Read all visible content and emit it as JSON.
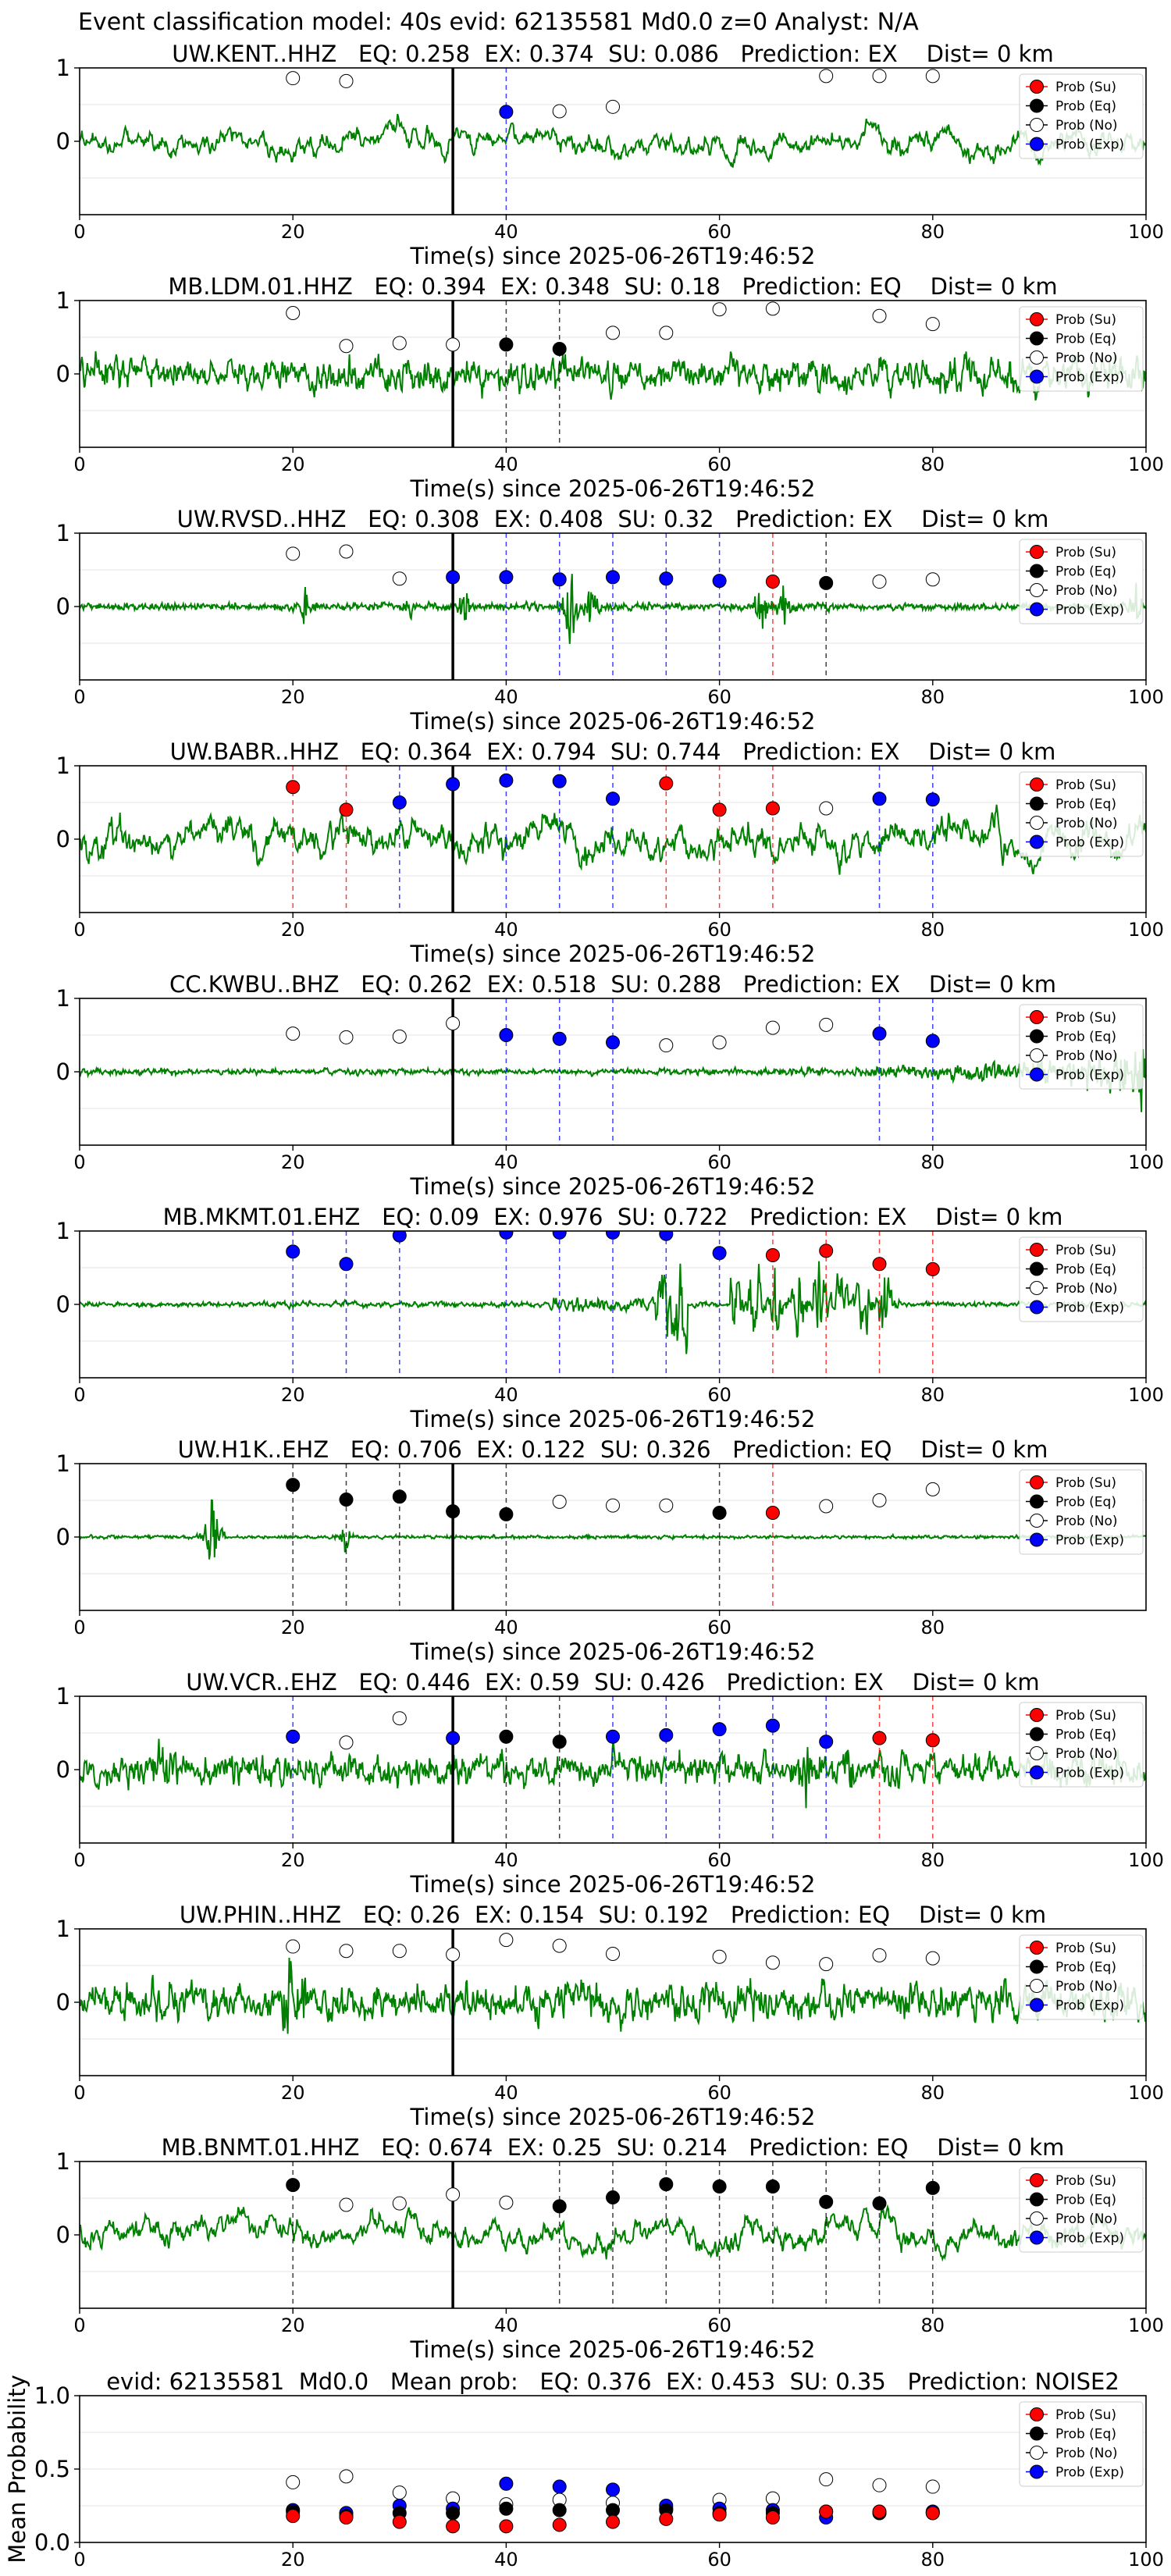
{
  "figure_title": "Event classification model: 40s evid: 62135581 Md0.0 z=0 Analyst: N/A",
  "legend_entries": [
    "Prob (Su)",
    "Prob (Eq)",
    "Prob (No)",
    "Prob (Exp)"
  ],
  "colors": {
    "su": "#ff0000",
    "eq": "#000000",
    "no": "#ffffff",
    "exp": "#0000ff",
    "waveform": "#008000",
    "marker_edge": "#000000",
    "origin_line": "#000000",
    "grid": "#e6e6e6"
  },
  "chart_data": [
    {
      "type": "line",
      "title": "UW.KENT..HHZ   EQ: 0.258  EX: 0.374  SU: 0.086   Prediction: EX    Dist= 0 km",
      "xlabel": "Time(s) since 2025-06-26T19:46:52",
      "ylabel": "",
      "xlim": [
        0,
        100
      ],
      "ylim": [
        -1,
        1
      ],
      "xticks": [
        0,
        20,
        40,
        60,
        80,
        100
      ],
      "yticks": [
        0,
        1
      ],
      "origin_time": 35,
      "waveform": {
        "style": "smooth",
        "amplitude": 0.32,
        "seed": 11
      },
      "points": [
        {
          "t": 20,
          "p": 0.86,
          "cls": "no"
        },
        {
          "t": 25,
          "p": 0.82,
          "cls": "no"
        },
        {
          "t": 40,
          "p": 0.4,
          "cls": "exp"
        },
        {
          "t": 45,
          "p": 0.41,
          "cls": "no"
        },
        {
          "t": 50,
          "p": 0.47,
          "cls": "no"
        },
        {
          "t": 70,
          "p": 0.89,
          "cls": "no"
        },
        {
          "t": 75,
          "p": 0.89,
          "cls": "no"
        },
        {
          "t": 80,
          "p": 0.89,
          "cls": "no"
        }
      ]
    },
    {
      "type": "line",
      "title": "MB.LDM.01.HHZ   EQ: 0.394  EX: 0.348  SU: 0.18   Prediction: EQ    Dist= 0 km",
      "xlabel": "Time(s) since 2025-06-26T19:46:52",
      "ylabel": "",
      "xlim": [
        0,
        100
      ],
      "ylim": [
        -1,
        1
      ],
      "xticks": [
        0,
        20,
        40,
        60,
        80,
        100
      ],
      "yticks": [
        0,
        1
      ],
      "origin_time": 35,
      "waveform": {
        "style": "dense",
        "amplitude": 0.32,
        "seed": 23
      },
      "points": [
        {
          "t": 20,
          "p": 0.83,
          "cls": "no"
        },
        {
          "t": 25,
          "p": 0.38,
          "cls": "no"
        },
        {
          "t": 30,
          "p": 0.42,
          "cls": "no"
        },
        {
          "t": 35,
          "p": 0.4,
          "cls": "no"
        },
        {
          "t": 40,
          "p": 0.4,
          "cls": "eq"
        },
        {
          "t": 45,
          "p": 0.34,
          "cls": "eq"
        },
        {
          "t": 50,
          "p": 0.56,
          "cls": "no"
        },
        {
          "t": 55,
          "p": 0.56,
          "cls": "no"
        },
        {
          "t": 60,
          "p": 0.88,
          "cls": "no"
        },
        {
          "t": 65,
          "p": 0.89,
          "cls": "no"
        },
        {
          "t": 75,
          "p": 0.79,
          "cls": "no"
        },
        {
          "t": 80,
          "p": 0.68,
          "cls": "no"
        }
      ]
    },
    {
      "type": "line",
      "title": "UW.RVSD..HHZ   EQ: 0.308  EX: 0.408  SU: 0.32   Prediction: EX    Dist= 0 km",
      "xlabel": "Time(s) since 2025-06-26T19:46:52",
      "ylabel": "",
      "xlim": [
        0,
        100
      ],
      "ylim": [
        -1,
        1
      ],
      "xticks": [
        0,
        20,
        40,
        60,
        80,
        100
      ],
      "yticks": [
        0,
        1
      ],
      "origin_time": 35,
      "waveform": {
        "style": "bursty",
        "amplitude": 0.09,
        "seed": 37,
        "bursts": [
          [
            21,
            0.35
          ],
          [
            31,
            0.25
          ],
          [
            36,
            0.45
          ],
          [
            46,
            0.95
          ],
          [
            48,
            0.5
          ],
          [
            64,
            0.55
          ],
          [
            66,
            0.45
          ],
          [
            99,
            0.4
          ]
        ]
      },
      "points": [
        {
          "t": 20,
          "p": 0.72,
          "cls": "no"
        },
        {
          "t": 25,
          "p": 0.75,
          "cls": "no"
        },
        {
          "t": 30,
          "p": 0.38,
          "cls": "no"
        },
        {
          "t": 35,
          "p": 0.4,
          "cls": "exp"
        },
        {
          "t": 40,
          "p": 0.4,
          "cls": "exp"
        },
        {
          "t": 45,
          "p": 0.37,
          "cls": "exp"
        },
        {
          "t": 50,
          "p": 0.4,
          "cls": "exp"
        },
        {
          "t": 55,
          "p": 0.38,
          "cls": "exp"
        },
        {
          "t": 60,
          "p": 0.35,
          "cls": "exp"
        },
        {
          "t": 65,
          "p": 0.34,
          "cls": "su"
        },
        {
          "t": 70,
          "p": 0.32,
          "cls": "eq"
        },
        {
          "t": 75,
          "p": 0.34,
          "cls": "no"
        },
        {
          "t": 80,
          "p": 0.37,
          "cls": "no"
        }
      ]
    },
    {
      "type": "line",
      "title": "UW.BABR..HHZ   EQ: 0.364  EX: 0.794  SU: 0.744   Prediction: EX    Dist= 0 km",
      "xlabel": "Time(s) since 2025-06-26T19:46:52",
      "ylabel": "",
      "xlim": [
        0,
        100
      ],
      "ylim": [
        -1,
        1
      ],
      "xticks": [
        0,
        20,
        40,
        60,
        80,
        100
      ],
      "yticks": [
        0,
        1
      ],
      "origin_time": 35,
      "waveform": {
        "style": "smooth",
        "amplitude": 0.5,
        "seed": 53
      },
      "points": [
        {
          "t": 20,
          "p": 0.71,
          "cls": "su"
        },
        {
          "t": 25,
          "p": 0.4,
          "cls": "su"
        },
        {
          "t": 30,
          "p": 0.5,
          "cls": "exp"
        },
        {
          "t": 35,
          "p": 0.75,
          "cls": "exp"
        },
        {
          "t": 40,
          "p": 0.8,
          "cls": "exp"
        },
        {
          "t": 45,
          "p": 0.79,
          "cls": "exp"
        },
        {
          "t": 50,
          "p": 0.55,
          "cls": "exp"
        },
        {
          "t": 55,
          "p": 0.76,
          "cls": "su"
        },
        {
          "t": 60,
          "p": 0.4,
          "cls": "su"
        },
        {
          "t": 65,
          "p": 0.42,
          "cls": "su"
        },
        {
          "t": 70,
          "p": 0.42,
          "cls": "no"
        },
        {
          "t": 75,
          "p": 0.55,
          "cls": "exp"
        },
        {
          "t": 80,
          "p": 0.54,
          "cls": "exp"
        }
      ]
    },
    {
      "type": "line",
      "title": "CC.KWBU..BHZ   EQ: 0.262  EX: 0.518  SU: 0.288   Prediction: EX    Dist= 0 km",
      "xlabel": "Time(s) since 2025-06-26T19:46:52",
      "ylabel": "",
      "xlim": [
        0,
        100
      ],
      "ylim": [
        -1,
        1
      ],
      "xticks": [
        0,
        20,
        40,
        60,
        80,
        100
      ],
      "yticks": [
        0,
        1
      ],
      "origin_time": 35,
      "waveform": {
        "style": "growing",
        "amplitude": 0.06,
        "seed": 71
      },
      "points": [
        {
          "t": 20,
          "p": 0.52,
          "cls": "no"
        },
        {
          "t": 25,
          "p": 0.47,
          "cls": "no"
        },
        {
          "t": 30,
          "p": 0.48,
          "cls": "no"
        },
        {
          "t": 35,
          "p": 0.66,
          "cls": "no"
        },
        {
          "t": 40,
          "p": 0.5,
          "cls": "exp"
        },
        {
          "t": 45,
          "p": 0.45,
          "cls": "exp"
        },
        {
          "t": 50,
          "p": 0.4,
          "cls": "exp"
        },
        {
          "t": 55,
          "p": 0.36,
          "cls": "no"
        },
        {
          "t": 60,
          "p": 0.4,
          "cls": "no"
        },
        {
          "t": 65,
          "p": 0.6,
          "cls": "no"
        },
        {
          "t": 70,
          "p": 0.64,
          "cls": "no"
        },
        {
          "t": 75,
          "p": 0.52,
          "cls": "exp"
        },
        {
          "t": 80,
          "p": 0.42,
          "cls": "exp"
        }
      ]
    },
    {
      "type": "line",
      "title": "MB.MKMT.01.EHZ   EQ: 0.09  EX: 0.976  SU: 0.722   Prediction: EX    Dist= 0 km",
      "xlabel": "Time(s) since 2025-06-26T19:46:52",
      "ylabel": "",
      "xlim": [
        0,
        100
      ],
      "ylim": [
        -1,
        1
      ],
      "xticks": [
        0,
        20,
        40,
        60,
        80,
        100
      ],
      "yticks": [
        0,
        1
      ],
      "origin_time": null,
      "waveform": {
        "style": "blasts",
        "amplitude": 0.05,
        "seed": 89
      },
      "points": [
        {
          "t": 20,
          "p": 0.72,
          "cls": "exp"
        },
        {
          "t": 25,
          "p": 0.55,
          "cls": "exp"
        },
        {
          "t": 30,
          "p": 0.94,
          "cls": "exp"
        },
        {
          "t": 40,
          "p": 0.98,
          "cls": "exp"
        },
        {
          "t": 45,
          "p": 0.98,
          "cls": "exp"
        },
        {
          "t": 50,
          "p": 0.98,
          "cls": "exp"
        },
        {
          "t": 55,
          "p": 0.96,
          "cls": "exp"
        },
        {
          "t": 60,
          "p": 0.7,
          "cls": "exp"
        },
        {
          "t": 65,
          "p": 0.67,
          "cls": "su"
        },
        {
          "t": 70,
          "p": 0.73,
          "cls": "su"
        },
        {
          "t": 75,
          "p": 0.55,
          "cls": "su"
        },
        {
          "t": 80,
          "p": 0.48,
          "cls": "su"
        }
      ]
    },
    {
      "type": "line",
      "title": "UW.H1K..EHZ   EQ: 0.706  EX: 0.122  SU: 0.326   Prediction: EQ    Dist= 0 km",
      "xlabel": "Time(s) since 2025-06-26T19:46:52",
      "ylabel": "",
      "xlim": [
        0,
        100
      ],
      "ylim": [
        -1,
        1
      ],
      "xticks": [
        0,
        20,
        40,
        60,
        80
      ],
      "yticks": [
        0,
        1
      ],
      "origin_time": 35,
      "waveform": {
        "style": "quiet",
        "amplitude": 0.04,
        "seed": 97,
        "bursts": [
          [
            12.3,
            0.98
          ],
          [
            25,
            0.35
          ]
        ]
      },
      "points": [
        {
          "t": 20,
          "p": 0.71,
          "cls": "eq"
        },
        {
          "t": 25,
          "p": 0.51,
          "cls": "eq"
        },
        {
          "t": 30,
          "p": 0.55,
          "cls": "eq"
        },
        {
          "t": 35,
          "p": 0.35,
          "cls": "eq"
        },
        {
          "t": 40,
          "p": 0.31,
          "cls": "eq"
        },
        {
          "t": 45,
          "p": 0.48,
          "cls": "no"
        },
        {
          "t": 50,
          "p": 0.43,
          "cls": "no"
        },
        {
          "t": 55,
          "p": 0.43,
          "cls": "no"
        },
        {
          "t": 60,
          "p": 0.33,
          "cls": "eq"
        },
        {
          "t": 65,
          "p": 0.33,
          "cls": "su"
        },
        {
          "t": 70,
          "p": 0.42,
          "cls": "no"
        },
        {
          "t": 75,
          "p": 0.5,
          "cls": "no"
        },
        {
          "t": 80,
          "p": 0.65,
          "cls": "no"
        }
      ]
    },
    {
      "type": "line",
      "title": "UW.VCR..EHZ   EQ: 0.446  EX: 0.59  SU: 0.426   Prediction: EX    Dist= 0 km",
      "xlabel": "Time(s) since 2025-06-26T19:46:52",
      "ylabel": "",
      "xlim": [
        0,
        100
      ],
      "ylim": [
        -1,
        1
      ],
      "xticks": [
        0,
        20,
        40,
        60,
        80,
        100
      ],
      "yticks": [
        0,
        1
      ],
      "origin_time": 35,
      "waveform": {
        "style": "dense",
        "amplitude": 0.3,
        "seed": 101,
        "bursts": [
          [
            7.5,
            0.8
          ],
          [
            68,
            0.6
          ],
          [
            72,
            0.6
          ]
        ]
      },
      "points": [
        {
          "t": 20,
          "p": 0.45,
          "cls": "exp"
        },
        {
          "t": 25,
          "p": 0.37,
          "cls": "no"
        },
        {
          "t": 30,
          "p": 0.7,
          "cls": "no"
        },
        {
          "t": 35,
          "p": 0.43,
          "cls": "exp"
        },
        {
          "t": 40,
          "p": 0.45,
          "cls": "eq"
        },
        {
          "t": 45,
          "p": 0.38,
          "cls": "eq"
        },
        {
          "t": 50,
          "p": 0.45,
          "cls": "exp"
        },
        {
          "t": 55,
          "p": 0.47,
          "cls": "exp"
        },
        {
          "t": 60,
          "p": 0.55,
          "cls": "exp"
        },
        {
          "t": 65,
          "p": 0.6,
          "cls": "exp"
        },
        {
          "t": 70,
          "p": 0.38,
          "cls": "exp"
        },
        {
          "t": 75,
          "p": 0.43,
          "cls": "su"
        },
        {
          "t": 80,
          "p": 0.4,
          "cls": "su"
        }
      ]
    },
    {
      "type": "line",
      "title": "UW.PHIN..HHZ   EQ: 0.26  EX: 0.154  SU: 0.192   Prediction: EQ    Dist= 0 km",
      "xlabel": "Time(s) since 2025-06-26T19:46:52",
      "ylabel": "",
      "xlim": [
        0,
        100
      ],
      "ylim": [
        -1,
        1
      ],
      "xticks": [
        0,
        20,
        40,
        60,
        80,
        100
      ],
      "yticks": [
        0,
        1
      ],
      "origin_time": 35,
      "waveform": {
        "style": "dense",
        "amplitude": 0.35,
        "seed": 131,
        "bursts": [
          [
            19.5,
            0.95
          ],
          [
            21,
            0.7
          ]
        ]
      },
      "points": [
        {
          "t": 20,
          "p": 0.76,
          "cls": "no"
        },
        {
          "t": 25,
          "p": 0.7,
          "cls": "no"
        },
        {
          "t": 30,
          "p": 0.7,
          "cls": "no"
        },
        {
          "t": 35,
          "p": 0.65,
          "cls": "no"
        },
        {
          "t": 40,
          "p": 0.85,
          "cls": "no"
        },
        {
          "t": 45,
          "p": 0.77,
          "cls": "no"
        },
        {
          "t": 50,
          "p": 0.66,
          "cls": "no"
        },
        {
          "t": 60,
          "p": 0.62,
          "cls": "no"
        },
        {
          "t": 65,
          "p": 0.54,
          "cls": "no"
        },
        {
          "t": 70,
          "p": 0.52,
          "cls": "no"
        },
        {
          "t": 75,
          "p": 0.64,
          "cls": "no"
        },
        {
          "t": 80,
          "p": 0.6,
          "cls": "no"
        }
      ]
    },
    {
      "type": "line",
      "title": "MB.BNMT.01.HHZ   EQ: 0.674  EX: 0.25  SU: 0.214   Prediction: EQ    Dist= 0 km",
      "xlabel": "Time(s) since 2025-06-26T19:46:52",
      "ylabel": "",
      "xlim": [
        0,
        100
      ],
      "ylim": [
        -1,
        1
      ],
      "xticks": [
        0,
        20,
        40,
        60,
        80,
        100
      ],
      "yticks": [
        0,
        1
      ],
      "origin_time": 35,
      "waveform": {
        "style": "smooth",
        "amplitude": 0.38,
        "seed": 151
      },
      "points": [
        {
          "t": 20,
          "p": 0.68,
          "cls": "eq"
        },
        {
          "t": 25,
          "p": 0.41,
          "cls": "no"
        },
        {
          "t": 30,
          "p": 0.43,
          "cls": "no"
        },
        {
          "t": 35,
          "p": 0.55,
          "cls": "no"
        },
        {
          "t": 40,
          "p": 0.44,
          "cls": "no"
        },
        {
          "t": 45,
          "p": 0.39,
          "cls": "eq"
        },
        {
          "t": 50,
          "p": 0.51,
          "cls": "eq"
        },
        {
          "t": 55,
          "p": 0.69,
          "cls": "eq"
        },
        {
          "t": 60,
          "p": 0.66,
          "cls": "eq"
        },
        {
          "t": 65,
          "p": 0.66,
          "cls": "eq"
        },
        {
          "t": 70,
          "p": 0.45,
          "cls": "eq"
        },
        {
          "t": 75,
          "p": 0.43,
          "cls": "eq"
        },
        {
          "t": 80,
          "p": 0.64,
          "cls": "eq"
        }
      ]
    },
    {
      "type": "scatter",
      "title": "evid: 62135581  Md0.0   Mean prob:   EQ: 0.376  EX: 0.453  SU: 0.35   Prediction: NOISE2",
      "xlabel": "",
      "ylabel": "Mean Probability",
      "xlim": [
        0,
        100
      ],
      "ylim": [
        0,
        1
      ],
      "xticks": [
        0,
        20,
        40,
        60,
        80,
        100
      ],
      "yticks": [
        0.0,
        0.5,
        1.0
      ],
      "x": [
        20,
        25,
        30,
        35,
        40,
        45,
        50,
        55,
        60,
        65,
        70,
        75,
        80
      ],
      "series": [
        {
          "name": "Prob (No)",
          "cls": "no",
          "values": [
            0.41,
            0.45,
            0.34,
            0.3,
            0.26,
            0.29,
            0.27,
            0.23,
            0.29,
            0.3,
            0.43,
            0.39,
            0.38
          ]
        },
        {
          "name": "Prob (Exp)",
          "cls": "exp",
          "values": [
            0.22,
            0.2,
            0.25,
            0.23,
            0.4,
            0.38,
            0.36,
            0.25,
            0.23,
            0.22,
            0.17,
            0.2,
            0.21
          ]
        },
        {
          "name": "Prob (Eq)",
          "cls": "eq",
          "values": [
            0.21,
            0.18,
            0.2,
            0.2,
            0.23,
            0.22,
            0.22,
            0.22,
            0.2,
            0.2,
            0.21,
            0.2,
            0.2
          ]
        },
        {
          "name": "Prob (Su)",
          "cls": "su",
          "values": [
            0.18,
            0.17,
            0.14,
            0.11,
            0.11,
            0.12,
            0.14,
            0.16,
            0.19,
            0.17,
            0.21,
            0.21,
            0.2
          ]
        }
      ]
    }
  ]
}
